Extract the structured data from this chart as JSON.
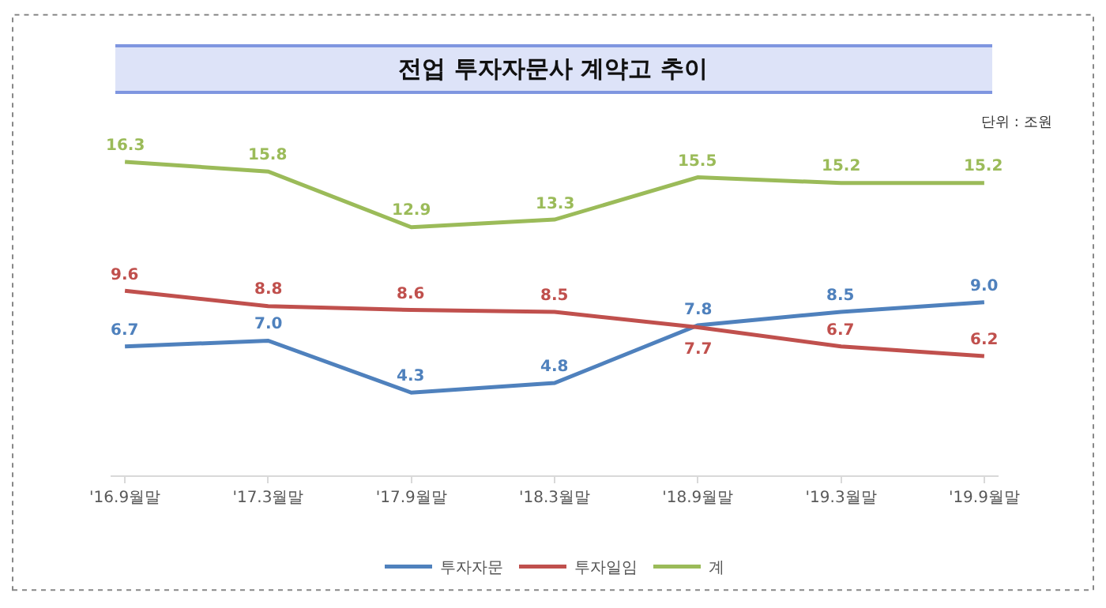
{
  "chart_data": {
    "type": "line",
    "title": "전업 투자자문사 계약고 추이",
    "annotations": [
      "단위 : 조원"
    ],
    "categories": [
      "'16.9월말",
      "'17.3월말",
      "'17.9월말",
      "'18.3월말",
      "'18.9월말",
      "'19.3월말",
      "'19.9월말"
    ],
    "series": [
      {
        "name": "투자자문",
        "color": "#4f81bd",
        "values": [
          6.7,
          7.0,
          4.3,
          4.8,
          7.8,
          8.5,
          9.0
        ],
        "value_labels": [
          "6.7",
          "7.0",
          "4.3",
          "4.8",
          "7.8",
          "8.5",
          "9.0"
        ]
      },
      {
        "name": "투자일임",
        "color": "#c0504d",
        "values": [
          9.6,
          8.8,
          8.6,
          8.5,
          7.7,
          6.7,
          6.2
        ],
        "value_labels": [
          "9.6",
          "8.8",
          "8.6",
          "8.5",
          "7.7",
          "6.7",
          "6.2"
        ]
      },
      {
        "name": "계",
        "color": "#9bbb59",
        "values": [
          16.3,
          15.8,
          12.9,
          13.3,
          15.5,
          15.2,
          15.2
        ],
        "value_labels": [
          "16.3",
          "15.8",
          "12.9",
          "13.3",
          "15.5",
          "15.2",
          "15.2"
        ]
      }
    ],
    "legend": "bottom",
    "marker": "none",
    "line_style": "solid"
  }
}
